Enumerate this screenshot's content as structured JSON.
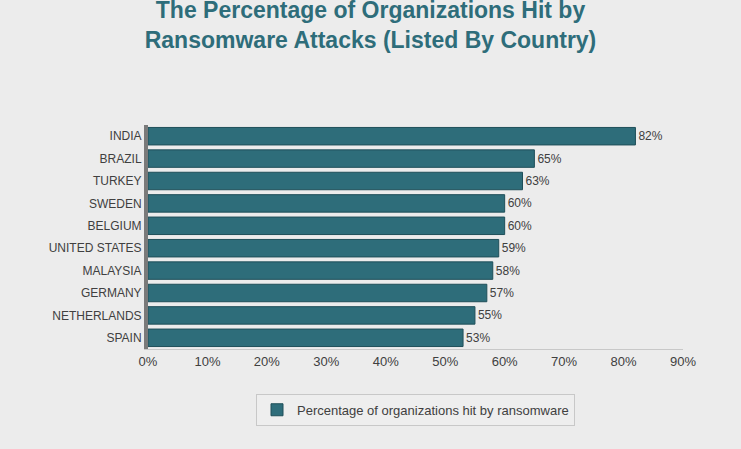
{
  "chart_data": {
    "type": "bar",
    "title": "The Percentage of Organizations Hit by Ransomware Attacks (Listed By Country)",
    "orientation": "horizontal",
    "categories": [
      "INDIA",
      "BRAZIL",
      "TURKEY",
      "SWEDEN",
      "BELGIUM",
      "UNITED STATES",
      "MALAYSIA",
      "GERMANY",
      "NETHERLANDS",
      "SPAIN"
    ],
    "series": [
      {
        "name": "Percentage of organizations hit by ransomware",
        "color": "#2e6d7a",
        "values": [
          82,
          65,
          63,
          60,
          60,
          59,
          58,
          57,
          55,
          53
        ],
        "value_labels": [
          "82%",
          "65%",
          "63%",
          "60%",
          "60%",
          "59%",
          "58%",
          "57%",
          "55%",
          "53%"
        ]
      }
    ],
    "xlim": [
      0,
      90
    ],
    "xticks": [
      {
        "value": 0,
        "label": "0%"
      },
      {
        "value": 10,
        "label": "10%"
      },
      {
        "value": 20,
        "label": "20%"
      },
      {
        "value": 30,
        "label": "30%"
      },
      {
        "value": 40,
        "label": "40%"
      },
      {
        "value": 50,
        "label": "50%"
      },
      {
        "value": 60,
        "label": "60%"
      },
      {
        "value": 70,
        "label": "70%"
      },
      {
        "value": 80,
        "label": "80%"
      },
      {
        "value": 90,
        "label": "90%"
      }
    ],
    "data_labels": true,
    "grid": false,
    "legend": "bottom"
  }
}
